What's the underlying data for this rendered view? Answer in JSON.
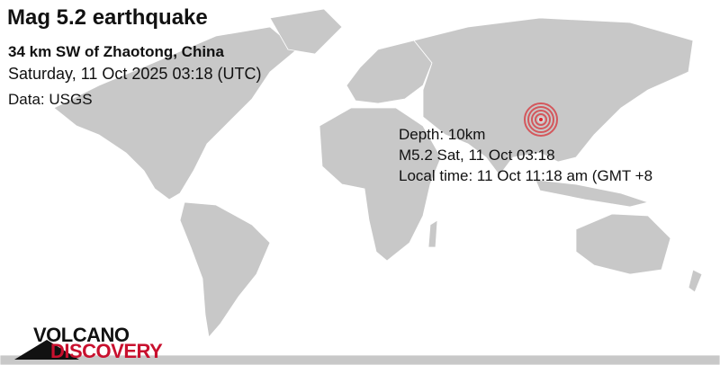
{
  "title": "Mag 5.2 earthquake",
  "location": "34 km SW of Zhaotong, China",
  "datetime": "Saturday, 11 Oct 2025 03:18 (UTC)",
  "source": "Data: USGS",
  "details": {
    "depth": "Depth: 10km",
    "summary": "M5.2 Sat, 11 Oct 03:18",
    "local_time": "Local time: 11 Oct 11:18 am (GMT +8"
  },
  "epicenter": {
    "marker_color": "#d9262e",
    "icon": "concentric-rings-icon"
  },
  "colors": {
    "land": "#c8c8c8",
    "ocean": "#ffffff",
    "border": "#ffffff"
  },
  "logo": {
    "line1": "VOLCANO",
    "line2": "DISCOVERY"
  }
}
